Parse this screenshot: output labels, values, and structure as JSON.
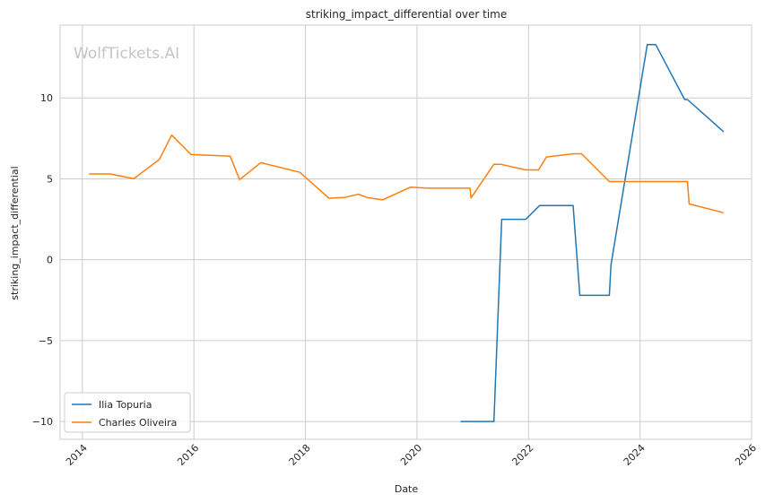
{
  "chart_data": {
    "type": "line",
    "title": "striking_impact_differential over time",
    "xlabel": "Date",
    "ylabel": "striking_impact_differential",
    "watermark": "WolfTickets.AI",
    "xlim": [
      2013.6,
      2026.0
    ],
    "ylim": [
      -11.1,
      14.5
    ],
    "xticks": [
      2014,
      2016,
      2018,
      2020,
      2022,
      2024,
      2026
    ],
    "xtick_labels": [
      "2014",
      "2016",
      "2018",
      "2020",
      "2022",
      "2024",
      "2026"
    ],
    "yticks": [
      -10,
      -5,
      0,
      5,
      10
    ],
    "ytick_labels": [
      "−10",
      "−5",
      "0",
      "5",
      "10"
    ],
    "grid": true,
    "legend_position": "lower-left",
    "series": [
      {
        "name": "Ilia Topuria",
        "color": "#1f77b4",
        "points": [
          [
            2020.78,
            -10.0
          ],
          [
            2021.38,
            -10.0
          ],
          [
            2021.52,
            2.5
          ],
          [
            2021.95,
            2.5
          ],
          [
            2022.2,
            3.35
          ],
          [
            2022.8,
            3.35
          ],
          [
            2022.92,
            -2.2
          ],
          [
            2023.45,
            -2.2
          ],
          [
            2023.48,
            -0.3
          ],
          [
            2024.13,
            13.3
          ],
          [
            2024.28,
            13.3
          ],
          [
            2024.8,
            9.9
          ],
          [
            2024.85,
            9.9
          ],
          [
            2025.5,
            7.9
          ]
        ]
      },
      {
        "name": "Charles Oliveira",
        "color": "#ff7f0e",
        "points": [
          [
            2014.12,
            5.3
          ],
          [
            2014.5,
            5.3
          ],
          [
            2014.92,
            5.0
          ],
          [
            2015.38,
            6.2
          ],
          [
            2015.6,
            7.7
          ],
          [
            2015.95,
            6.5
          ],
          [
            2016.65,
            6.4
          ],
          [
            2016.82,
            4.95
          ],
          [
            2017.2,
            6.0
          ],
          [
            2017.9,
            5.4
          ],
          [
            2018.42,
            3.8
          ],
          [
            2018.7,
            3.85
          ],
          [
            2018.95,
            4.05
          ],
          [
            2019.1,
            3.85
          ],
          [
            2019.38,
            3.7
          ],
          [
            2019.88,
            4.48
          ],
          [
            2020.2,
            4.42
          ],
          [
            2020.95,
            4.42
          ],
          [
            2020.97,
            3.82
          ],
          [
            2021.38,
            5.9
          ],
          [
            2021.5,
            5.9
          ],
          [
            2021.95,
            5.55
          ],
          [
            2022.18,
            5.55
          ],
          [
            2022.32,
            6.35
          ],
          [
            2022.8,
            6.55
          ],
          [
            2022.95,
            6.55
          ],
          [
            2023.45,
            4.83
          ],
          [
            2024.15,
            4.83
          ],
          [
            2024.85,
            4.83
          ],
          [
            2024.88,
            3.45
          ],
          [
            2025.5,
            2.9
          ]
        ]
      }
    ]
  }
}
